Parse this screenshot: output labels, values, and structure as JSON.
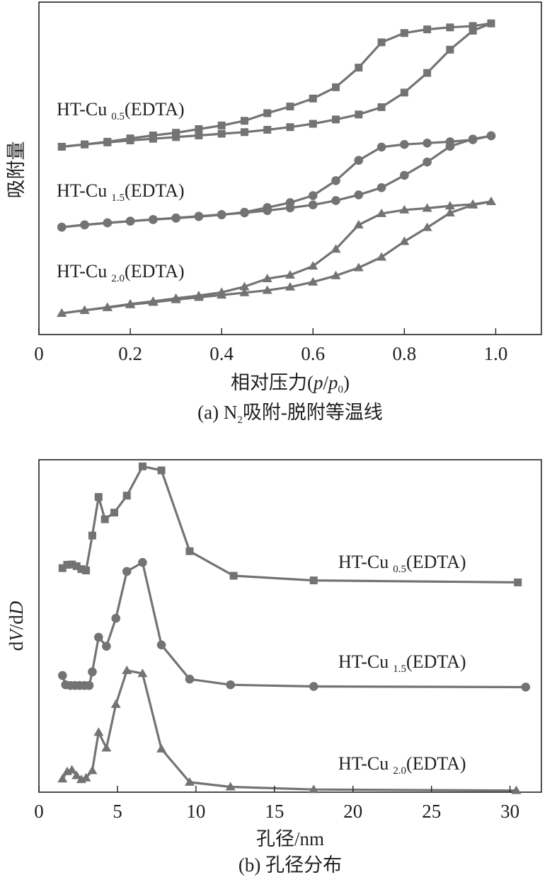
{
  "chart_data": [
    {
      "type": "line",
      "panel": "a",
      "caption": {
        "pre": "(a) N",
        "sub": "2",
        "post": "吸附-脱附等温线"
      },
      "xlabel": {
        "pre": "相对压力(",
        "p": "p",
        "slash": "/",
        "p0": "p",
        "p0sub": "0",
        "post": ")"
      },
      "ylabel": "吸附量",
      "xlim": [
        0,
        1.1
      ],
      "xticks": [
        0,
        0.2,
        0.4,
        0.6,
        0.8,
        1.0
      ],
      "xtick_labels": [
        "0",
        "0.2",
        "0.4",
        "0.6",
        "0.8",
        "1.0"
      ],
      "y_ticks_shown": false,
      "ylim": [
        0,
        1
      ],
      "series": [
        {
          "name": "HT-Cu 0.5(EDTA)",
          "label_pre": "HT-Cu",
          "label_sub": "0.5",
          "label_post": "(EDTA)",
          "marker": "square",
          "adsorption": [
            [
              0.05,
              0.565
            ],
            [
              0.1,
              0.572
            ],
            [
              0.15,
              0.578
            ],
            [
              0.2,
              0.584
            ],
            [
              0.25,
              0.589
            ],
            [
              0.3,
              0.594
            ],
            [
              0.35,
              0.599
            ],
            [
              0.4,
              0.604
            ],
            [
              0.45,
              0.609
            ],
            [
              0.5,
              0.616
            ],
            [
              0.55,
              0.624
            ],
            [
              0.6,
              0.634
            ],
            [
              0.65,
              0.647
            ],
            [
              0.7,
              0.662
            ],
            [
              0.75,
              0.684
            ],
            [
              0.8,
              0.728
            ],
            [
              0.85,
              0.787
            ],
            [
              0.9,
              0.857
            ],
            [
              0.95,
              0.914
            ],
            [
              0.99,
              0.936
            ]
          ],
          "desorption": [
            [
              0.99,
              0.936
            ],
            [
              0.95,
              0.928
            ],
            [
              0.9,
              0.924
            ],
            [
              0.85,
              0.918
            ],
            [
              0.8,
              0.907
            ],
            [
              0.75,
              0.879
            ],
            [
              0.7,
              0.803
            ],
            [
              0.65,
              0.744
            ],
            [
              0.6,
              0.71
            ],
            [
              0.55,
              0.686
            ],
            [
              0.5,
              0.666
            ],
            [
              0.45,
              0.643
            ],
            [
              0.4,
              0.629
            ],
            [
              0.35,
              0.618
            ],
            [
              0.3,
              0.607
            ],
            [
              0.25,
              0.599
            ],
            [
              0.2,
              0.59
            ],
            [
              0.15,
              0.58
            ],
            [
              0.1,
              0.572
            ],
            [
              0.05,
              0.565
            ]
          ]
        },
        {
          "name": "HT-Cu 1.5(EDTA)",
          "label_pre": "HT-Cu",
          "label_sub": "1.5",
          "label_post": "(EDTA)",
          "marker": "circle",
          "adsorption": [
            [
              0.05,
              0.323
            ],
            [
              0.1,
              0.33
            ],
            [
              0.15,
              0.336
            ],
            [
              0.2,
              0.341
            ],
            [
              0.25,
              0.346
            ],
            [
              0.3,
              0.351
            ],
            [
              0.35,
              0.356
            ],
            [
              0.4,
              0.361
            ],
            [
              0.45,
              0.366
            ],
            [
              0.5,
              0.373
            ],
            [
              0.55,
              0.381
            ],
            [
              0.6,
              0.39
            ],
            [
              0.65,
              0.403
            ],
            [
              0.7,
              0.42
            ],
            [
              0.75,
              0.442
            ],
            [
              0.8,
              0.479
            ],
            [
              0.85,
              0.519
            ],
            [
              0.9,
              0.566
            ],
            [
              0.95,
              0.588
            ],
            [
              0.99,
              0.598
            ]
          ],
          "desorption": [
            [
              0.99,
              0.598
            ],
            [
              0.95,
              0.586
            ],
            [
              0.9,
              0.58
            ],
            [
              0.85,
              0.576
            ],
            [
              0.8,
              0.572
            ],
            [
              0.75,
              0.564
            ],
            [
              0.7,
              0.524
            ],
            [
              0.65,
              0.463
            ],
            [
              0.6,
              0.418
            ],
            [
              0.55,
              0.397
            ],
            [
              0.5,
              0.382
            ],
            [
              0.45,
              0.368
            ],
            [
              0.4,
              0.36
            ],
            [
              0.35,
              0.355
            ],
            [
              0.3,
              0.35
            ],
            [
              0.25,
              0.346
            ],
            [
              0.2,
              0.341
            ],
            [
              0.15,
              0.336
            ],
            [
              0.1,
              0.33
            ],
            [
              0.05,
              0.323
            ]
          ]
        },
        {
          "name": "HT-Cu 2.0(EDTA)",
          "label_pre": "HT-Cu",
          "label_sub": "2.0",
          "label_post": "(EDTA)",
          "marker": "triangle",
          "adsorption": [
            [
              0.05,
              0.064
            ],
            [
              0.1,
              0.073
            ],
            [
              0.15,
              0.081
            ],
            [
              0.2,
              0.09
            ],
            [
              0.25,
              0.097
            ],
            [
              0.3,
              0.105
            ],
            [
              0.35,
              0.112
            ],
            [
              0.4,
              0.119
            ],
            [
              0.45,
              0.126
            ],
            [
              0.5,
              0.133
            ],
            [
              0.55,
              0.143
            ],
            [
              0.6,
              0.158
            ],
            [
              0.65,
              0.177
            ],
            [
              0.7,
              0.201
            ],
            [
              0.75,
              0.233
            ],
            [
              0.8,
              0.28
            ],
            [
              0.85,
              0.322
            ],
            [
              0.9,
              0.366
            ],
            [
              0.95,
              0.39
            ],
            [
              0.99,
              0.4
            ]
          ],
          "desorption": [
            [
              0.99,
              0.4
            ],
            [
              0.95,
              0.392
            ],
            [
              0.9,
              0.387
            ],
            [
              0.85,
              0.38
            ],
            [
              0.8,
              0.375
            ],
            [
              0.75,
              0.364
            ],
            [
              0.7,
              0.33
            ],
            [
              0.65,
              0.257
            ],
            [
              0.6,
              0.206
            ],
            [
              0.55,
              0.179
            ],
            [
              0.5,
              0.168
            ],
            [
              0.45,
              0.144
            ],
            [
              0.4,
              0.127
            ],
            [
              0.35,
              0.117
            ],
            [
              0.3,
              0.109
            ],
            [
              0.25,
              0.1
            ],
            [
              0.2,
              0.092
            ],
            [
              0.15,
              0.082
            ],
            [
              0.1,
              0.073
            ],
            [
              0.05,
              0.064
            ]
          ]
        }
      ]
    },
    {
      "type": "line",
      "panel": "b",
      "caption": {
        "pre": "(b) 孔径分布"
      },
      "xlabel": "孔径/nm",
      "ylabel": {
        "pre": "d",
        "V": "V",
        "mid": "/d",
        "D": "D"
      },
      "xlim": [
        0,
        32
      ],
      "xticks": [
        0,
        5,
        10,
        15,
        20,
        25,
        30
      ],
      "xtick_labels": [
        "0",
        "5",
        "10",
        "15",
        "20",
        "25",
        "30"
      ],
      "y_ticks_shown": false,
      "ylim": [
        0,
        1
      ],
      "series": [
        {
          "name": "HT-Cu 0.5(EDTA)",
          "label_pre": "HT-Cu",
          "label_sub": "0.5",
          "label_post": "(EDTA)",
          "marker": "square",
          "points": [
            [
              1.5,
              0.674
            ],
            [
              1.8,
              0.684
            ],
            [
              2.1,
              0.685
            ],
            [
              2.4,
              0.68
            ],
            [
              2.7,
              0.671
            ],
            [
              3.0,
              0.667
            ],
            [
              3.4,
              0.772
            ],
            [
              3.8,
              0.888
            ],
            [
              4.2,
              0.821
            ],
            [
              4.8,
              0.841
            ],
            [
              5.6,
              0.892
            ],
            [
              6.6,
              0.98
            ],
            [
              7.8,
              0.968
            ],
            [
              9.6,
              0.725
            ],
            [
              12.4,
              0.651
            ],
            [
              17.5,
              0.637
            ],
            [
              30.5,
              0.631
            ]
          ]
        },
        {
          "name": "HT-Cu 1.5(EDTA)",
          "label_pre": "HT-Cu",
          "label_sub": "1.5",
          "label_post": "(EDTA)",
          "marker": "circle",
          "points": [
            [
              1.5,
              0.351
            ],
            [
              1.7,
              0.323
            ],
            [
              2.0,
              0.321
            ],
            [
              2.3,
              0.321
            ],
            [
              2.6,
              0.321
            ],
            [
              2.9,
              0.321
            ],
            [
              3.2,
              0.321
            ],
            [
              3.4,
              0.362
            ],
            [
              3.8,
              0.466
            ],
            [
              4.3,
              0.439
            ],
            [
              4.9,
              0.523
            ],
            [
              5.6,
              0.664
            ],
            [
              6.6,
              0.691
            ],
            [
              7.8,
              0.443
            ],
            [
              9.6,
              0.34
            ],
            [
              12.2,
              0.323
            ],
            [
              17.5,
              0.318
            ],
            [
              31.0,
              0.316
            ]
          ]
        },
        {
          "name": "HT-Cu 2.0(EDTA)",
          "label_pre": "HT-Cu",
          "label_sub": "2.0",
          "label_post": "(EDTA)",
          "marker": "triangle",
          "points": [
            [
              1.5,
              0.04
            ],
            [
              1.8,
              0.062
            ],
            [
              2.1,
              0.067
            ],
            [
              2.4,
              0.05
            ],
            [
              2.7,
              0.038
            ],
            [
              3.0,
              0.043
            ],
            [
              3.4,
              0.065
            ],
            [
              3.8,
              0.18
            ],
            [
              4.3,
              0.133
            ],
            [
              4.9,
              0.264
            ],
            [
              5.6,
              0.366
            ],
            [
              6.6,
              0.357
            ],
            [
              7.8,
              0.13
            ],
            [
              9.6,
              0.03
            ],
            [
              12.2,
              0.016
            ],
            [
              17.5,
              0.008
            ],
            [
              30.4,
              0.005
            ]
          ]
        }
      ]
    }
  ]
}
